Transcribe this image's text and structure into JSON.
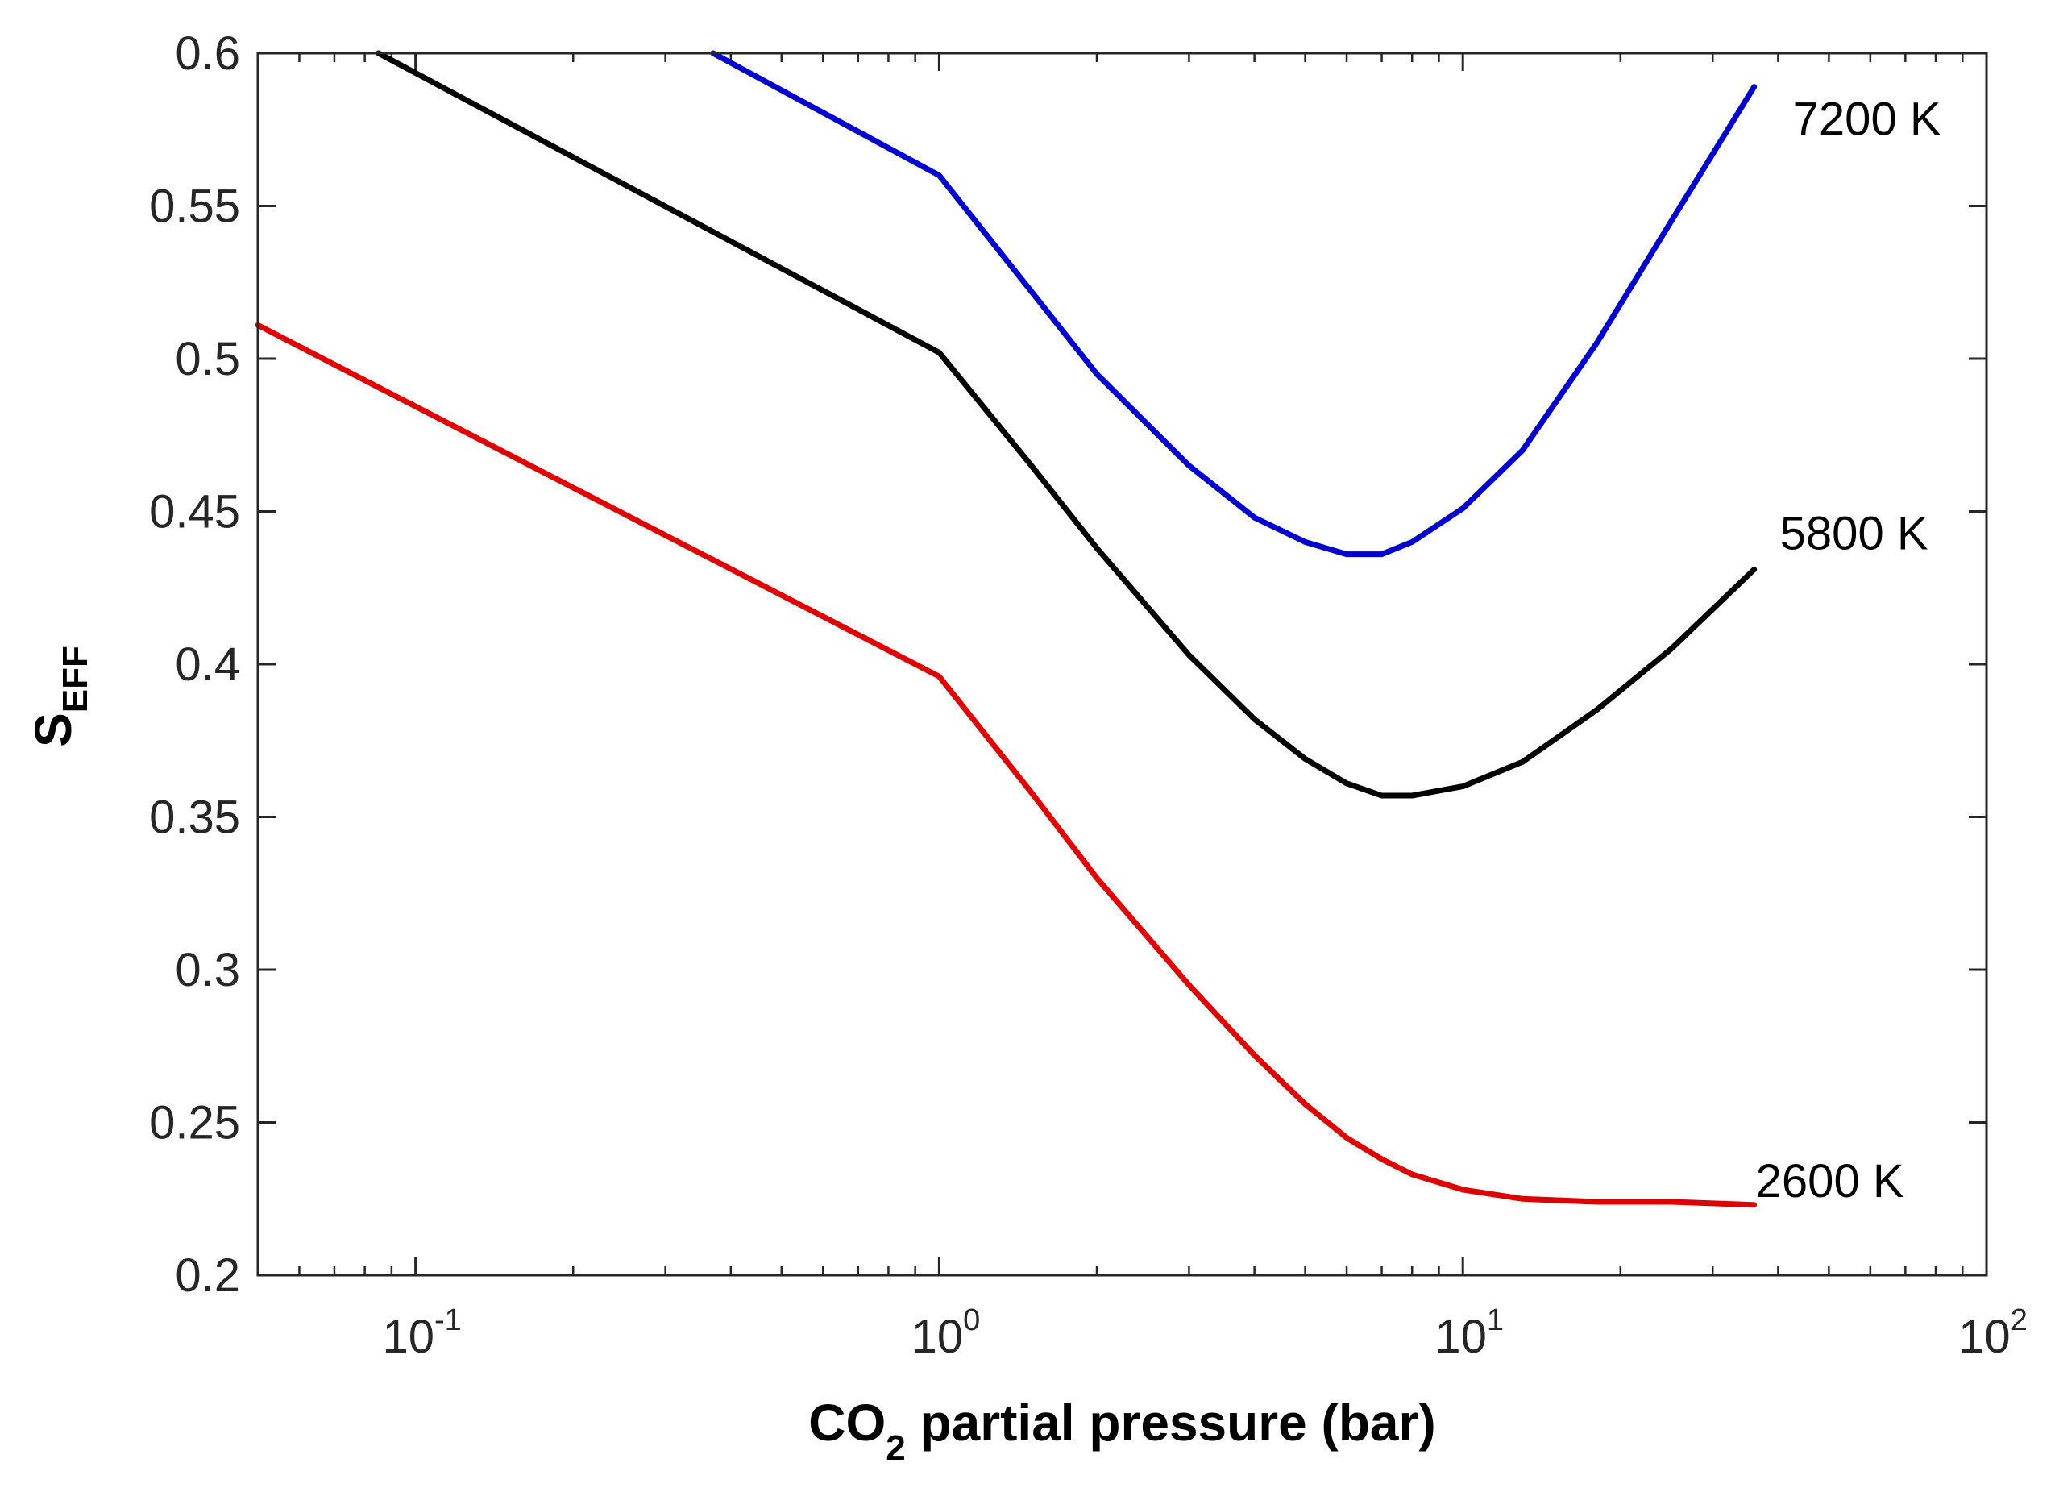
{
  "chart_data": {
    "type": "line",
    "title": "",
    "xscale": "log",
    "xlim": [
      0.05,
      100
    ],
    "ylim": [
      0.2,
      0.6
    ],
    "xlabel": {
      "main": "CO",
      "sub": "2",
      "rest": " partial pressure (bar)"
    },
    "ylabel": {
      "main": "S",
      "sub": "EFF"
    },
    "x_ticks": [
      {
        "value": 0.1,
        "base": "10",
        "exp": "-1"
      },
      {
        "value": 1,
        "base": "10",
        "exp": "0"
      },
      {
        "value": 10,
        "base": "10",
        "exp": "1"
      },
      {
        "value": 100,
        "base": "10",
        "exp": "2"
      }
    ],
    "y_ticks": [
      {
        "value": 0.2,
        "label": "0.2"
      },
      {
        "value": 0.25,
        "label": "0.25"
      },
      {
        "value": 0.3,
        "label": "0.3"
      },
      {
        "value": 0.35,
        "label": "0.35"
      },
      {
        "value": 0.4,
        "label": "0.4"
      },
      {
        "value": 0.45,
        "label": "0.45"
      },
      {
        "value": 0.5,
        "label": "0.5"
      },
      {
        "value": 0.55,
        "label": "0.55"
      },
      {
        "value": 0.6,
        "label": "0.6"
      }
    ],
    "grid": false,
    "series": [
      {
        "name": "7200 K",
        "color": "#0000cc",
        "x": [
          0.37,
          1.0,
          1.5,
          2.0,
          3.0,
          4.0,
          5.0,
          6.0,
          7.0,
          8.0,
          10.0,
          13.0,
          18.0,
          25.0,
          36.0
        ],
        "y": [
          0.6,
          0.56,
          0.522,
          0.495,
          0.465,
          0.448,
          0.44,
          0.436,
          0.436,
          0.44,
          0.451,
          0.47,
          0.505,
          0.545,
          0.589
        ]
      },
      {
        "name": "5800 K",
        "color": "#000000",
        "x": [
          0.085,
          1.0,
          1.5,
          2.0,
          3.0,
          4.0,
          5.0,
          6.0,
          7.0,
          8.0,
          10.0,
          13.0,
          18.0,
          25.0,
          36.0
        ],
        "y": [
          0.6,
          0.502,
          0.465,
          0.438,
          0.403,
          0.382,
          0.369,
          0.361,
          0.357,
          0.357,
          0.36,
          0.368,
          0.385,
          0.405,
          0.431
        ]
      },
      {
        "name": "2600 K",
        "color": "#dd0000",
        "x": [
          0.05,
          1.0,
          1.5,
          2.0,
          3.0,
          4.0,
          5.0,
          6.0,
          7.0,
          8.0,
          10.0,
          13.0,
          18.0,
          25.0,
          36.0
        ],
        "y": [
          0.511,
          0.396,
          0.358,
          0.33,
          0.295,
          0.272,
          0.256,
          0.245,
          0.238,
          0.233,
          0.228,
          0.225,
          0.224,
          0.224,
          0.223
        ]
      }
    ],
    "annotations": [
      {
        "text": "7200 K",
        "series": "7200 K"
      },
      {
        "text": "5800 K",
        "series": "5800 K"
      },
      {
        "text": "2600 K",
        "series": "2600 K"
      }
    ]
  }
}
